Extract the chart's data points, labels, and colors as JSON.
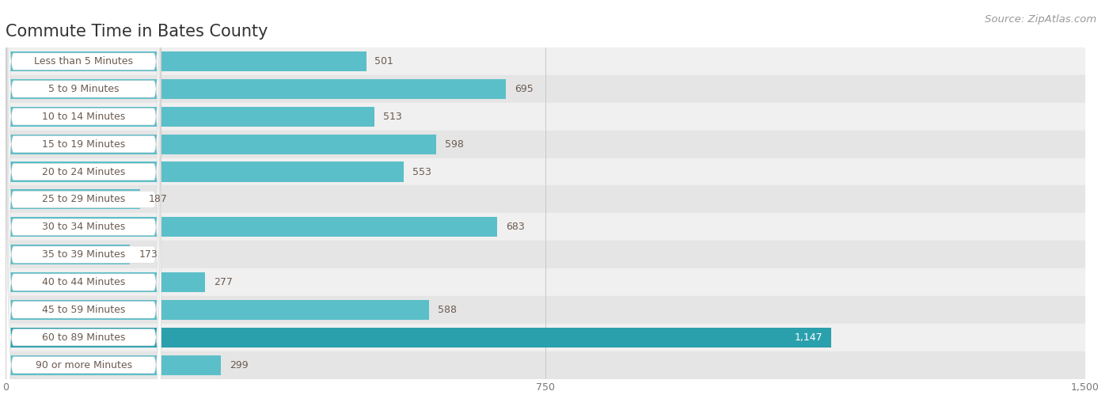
{
  "title": "Commute Time in Bates County",
  "source": "Source: ZipAtlas.com",
  "categories": [
    "Less than 5 Minutes",
    "5 to 9 Minutes",
    "10 to 14 Minutes",
    "15 to 19 Minutes",
    "20 to 24 Minutes",
    "25 to 29 Minutes",
    "30 to 34 Minutes",
    "35 to 39 Minutes",
    "40 to 44 Minutes",
    "45 to 59 Minutes",
    "60 to 89 Minutes",
    "90 or more Minutes"
  ],
  "values": [
    501,
    695,
    513,
    598,
    553,
    187,
    683,
    173,
    277,
    588,
    1147,
    299
  ],
  "bar_color_normal": "#5bbfc9",
  "bar_color_highlight": "#2ba0ad",
  "highlight_index": 10,
  "label_color_normal": "#6b5b50",
  "label_color_highlight": "#ffffff",
  "row_bg_even": "#f0f0f0",
  "row_bg_odd": "#e5e5e5",
  "xlim": [
    0,
    1500
  ],
  "xticks": [
    0,
    750,
    1500
  ],
  "title_fontsize": 15,
  "source_fontsize": 9.5,
  "bar_label_fontsize": 9,
  "category_fontsize": 9,
  "tick_fontsize": 9,
  "background_color": "#ffffff"
}
